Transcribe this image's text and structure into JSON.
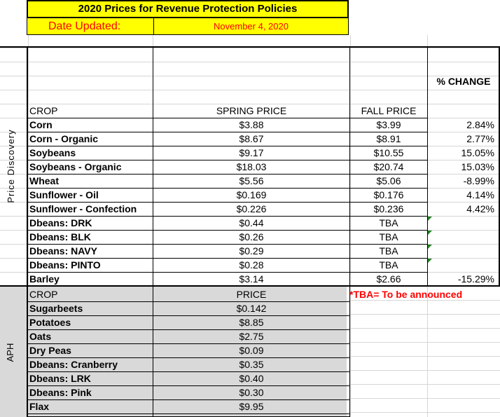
{
  "title": "2020 Prices for Revenue Protection Policies",
  "date_label": "Date Updated:",
  "date_value": "November 4, 2020",
  "side_labels": {
    "price_discovery": "Price Discovery",
    "aph": "APH"
  },
  "headers": {
    "crop": "CROP",
    "spring_price": "SPRING PRICE",
    "fall_price": "FALL PRICE",
    "pct_change": "% CHANGE"
  },
  "price_rows": [
    {
      "crop": "Corn",
      "spring": "$3.88",
      "fall": "$3.99",
      "change": "2.84%"
    },
    {
      "crop": "Corn - Organic",
      "spring": "$8.67",
      "fall": "$8.91",
      "change": "2.77%"
    },
    {
      "crop": "Soybeans",
      "spring": "$9.17",
      "fall": "$10.55",
      "change": "15.05%"
    },
    {
      "crop": "Soybeans - Organic",
      "spring": "$18.03",
      "fall": "$20.74",
      "change": "15.03%"
    },
    {
      "crop": "Wheat",
      "spring": "$5.56",
      "fall": "$5.06",
      "change": "-8.99%"
    },
    {
      "crop": "Sunflower - Oil",
      "spring": "$0.169",
      "fall": "$0.176",
      "change": "4.14%"
    },
    {
      "crop": "Sunflower - Confection",
      "spring": "$0.226",
      "fall": "$0.236",
      "change": "4.42%"
    },
    {
      "crop": "Dbeans: DRK",
      "spring": "$0.44",
      "fall": "TBA",
      "change": ""
    },
    {
      "crop": "Dbeans: BLK",
      "spring": "$0.26",
      "fall": "TBA",
      "change": ""
    },
    {
      "crop": "Dbeans: NAVY",
      "spring": "$0.29",
      "fall": "TBA",
      "change": ""
    },
    {
      "crop": "Dbeans: PINTO",
      "spring": "$0.28",
      "fall": "TBA",
      "change": ""
    },
    {
      "crop": "Barley",
      "spring": "$3.14",
      "fall": "$2.66",
      "change": "-15.29%"
    }
  ],
  "tba_note": "*TBA= To be announced",
  "aph_headers": {
    "crop": "CROP",
    "price": "PRICE"
  },
  "aph_rows": [
    {
      "crop": "Sugarbeets",
      "price": "$0.142"
    },
    {
      "crop": "Potatoes",
      "price": "$8.85"
    },
    {
      "crop": "Oats",
      "price": "$2.75"
    },
    {
      "crop": "Dry Peas",
      "price": "$0.09"
    },
    {
      "crop": "Dbeans: Cranberry",
      "price": "$0.35"
    },
    {
      "crop": "Dbeans: LRK",
      "price": "$0.40"
    },
    {
      "crop": "Dbeans: Pink",
      "price": "$0.30"
    },
    {
      "crop": "Flax",
      "price": "$9.95"
    }
  ],
  "colors": {
    "yellow": "#ffff00",
    "grey": "#d9d9d9",
    "red": "#ff0000",
    "flag_green": "#1f7f1f"
  }
}
